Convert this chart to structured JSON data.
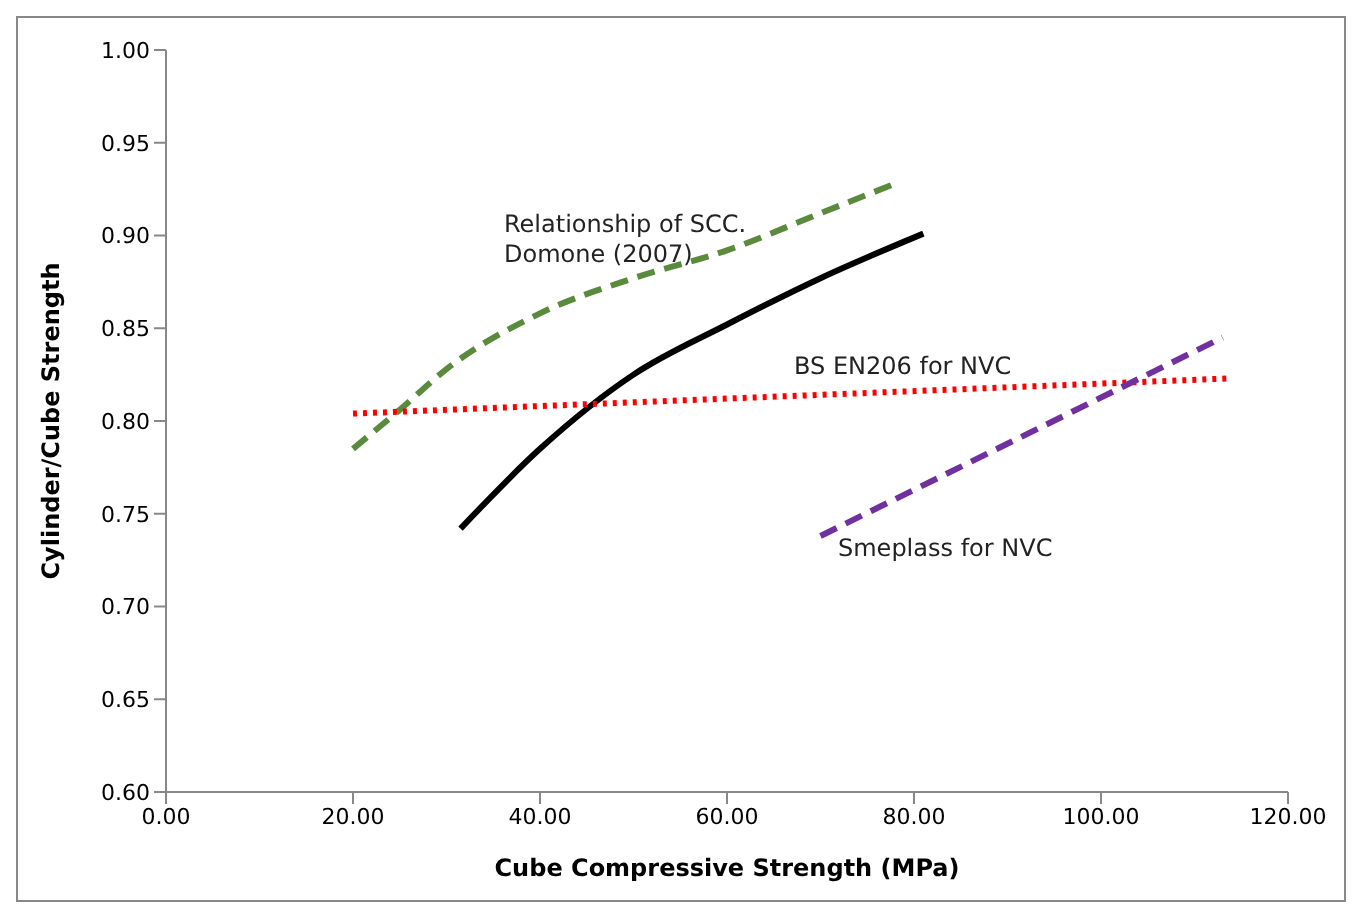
{
  "chart_data": {
    "type": "line",
    "xlabel": "Cube Compressive Strength (MPa)",
    "ylabel": "Cylinder/Cube Strength",
    "xlim": [
      0,
      120
    ],
    "xticks": [
      {
        "value": 0,
        "label": "0.00"
      },
      {
        "value": 20,
        "label": "20.00"
      },
      {
        "value": 40,
        "label": "40.00"
      },
      {
        "value": 60,
        "label": "60.00"
      },
      {
        "value": 80,
        "label": "80.00"
      },
      {
        "value": 100,
        "label": "100.00"
      },
      {
        "value": 120,
        "label": "120.00"
      }
    ],
    "ylim": [
      0.6,
      1.0
    ],
    "yticks": [
      {
        "value": 0.6,
        "label": "0.60"
      },
      {
        "value": 0.65,
        "label": "0.65"
      },
      {
        "value": 0.7,
        "label": "0.70"
      },
      {
        "value": 0.75,
        "label": "0.75"
      },
      {
        "value": 0.8,
        "label": "0.80"
      },
      {
        "value": 0.85,
        "label": "0.85"
      },
      {
        "value": 0.9,
        "label": "0.90"
      },
      {
        "value": 0.95,
        "label": "0.95"
      },
      {
        "value": 1.0,
        "label": "1.00"
      }
    ],
    "grid": false,
    "marker": "none",
    "series": [
      {
        "color": "#5a8a3c",
        "line_style": "dashed",
        "x": [
          20,
          25,
          30,
          40,
          50,
          60,
          70,
          78
        ],
        "values": [
          0.785,
          0.806,
          0.828,
          0.858,
          0.877,
          0.892,
          0.912,
          0.928
        ]
      },
      {
        "color": "#000000",
        "line_style": "solid",
        "x": [
          31.5,
          40,
          50,
          60,
          70,
          81
        ],
        "values": [
          0.742,
          0.785,
          0.825,
          0.852,
          0.877,
          0.901
        ]
      },
      {
        "color": "#ff0000",
        "line_style": "dotted",
        "x": [
          20,
          114
        ],
        "values": [
          0.804,
          0.823
        ]
      },
      {
        "color": "#7030a0",
        "line_style": "dashed",
        "x": [
          70,
          113
        ],
        "values": [
          0.738,
          0.845
        ]
      }
    ],
    "annotations": [
      "Relationship of SCC.\nDomone (2007)",
      "BS EN206 for NVC",
      "Smeplass for NVC"
    ]
  }
}
